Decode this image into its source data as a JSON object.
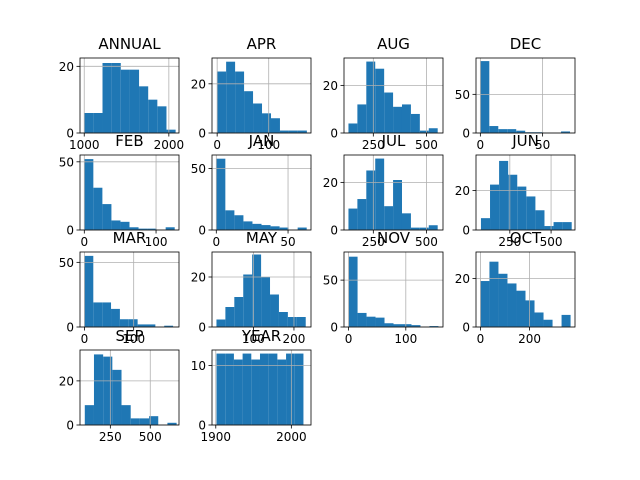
{
  "chart_data": [
    {
      "type": "bar",
      "title": "ANNUAL",
      "xlim": [
        950,
        2120
      ],
      "ylim": [
        0,
        22.5
      ],
      "xticks": [
        {
          "v": 1000,
          "l": "1000"
        },
        {
          "v": 2000,
          "l": "2000"
        }
      ],
      "yticks": [
        {
          "v": 0,
          "l": "0"
        },
        {
          "v": 20,
          "l": "20"
        }
      ],
      "bins": [
        1000,
        1108,
        1216,
        1324,
        1432,
        1540,
        1648,
        1756,
        1864,
        1972,
        2080
      ],
      "counts": [
        6,
        6,
        21,
        21,
        19,
        19,
        14,
        10,
        8,
        1
      ]
    },
    {
      "type": "bar",
      "title": "APR",
      "xlim": [
        -10,
        182
      ],
      "ylim": [
        0,
        30.5
      ],
      "xticks": [
        {
          "v": 0,
          "l": "0"
        },
        {
          "v": 100,
          "l": "100"
        }
      ],
      "yticks": [
        {
          "v": 0,
          "l": "0"
        },
        {
          "v": 20,
          "l": "20"
        }
      ],
      "bins": [
        0,
        17.4,
        34.8,
        52.2,
        69.6,
        87,
        104.4,
        121.8,
        139.2,
        156.6,
        174
      ],
      "counts": [
        25,
        29,
        25,
        17,
        12,
        8,
        6,
        1,
        1,
        1
      ]
    },
    {
      "type": "bar",
      "title": "AUG",
      "xlim": [
        112,
        578
      ],
      "ylim": [
        0,
        31.5
      ],
      "xticks": [
        {
          "v": 250,
          "l": "250"
        },
        {
          "v": 500,
          "l": "500"
        }
      ],
      "yticks": [
        {
          "v": 0,
          "l": "0"
        },
        {
          "v": 20,
          "l": "20"
        }
      ],
      "bins": [
        133,
        175,
        217,
        259,
        301,
        343,
        385,
        427,
        469,
        511,
        553
      ],
      "counts": [
        4,
        12,
        30,
        27,
        17,
        11,
        12,
        8,
        1,
        2
      ]
    },
    {
      "type": "bar",
      "title": "DEC",
      "xlim": [
        -3.5,
        76
      ],
      "ylim": [
        0,
        97
      ],
      "xticks": [
        {
          "v": 0,
          "l": "0"
        },
        {
          "v": 50,
          "l": "50"
        }
      ],
      "yticks": [
        {
          "v": 0,
          "l": "0"
        },
        {
          "v": 50,
          "l": "50"
        }
      ],
      "bins": [
        0,
        7.2,
        14.4,
        21.6,
        28.8,
        36,
        43.2,
        50.4,
        57.6,
        64.8,
        72
      ],
      "counts": [
        93,
        9,
        5,
        5,
        3,
        1,
        1,
        0,
        0,
        2
      ]
    },
    {
      "type": "bar",
      "title": "FEB",
      "xlim": [
        -6,
        132
      ],
      "ylim": [
        0,
        55
      ],
      "xticks": [
        {
          "v": 0,
          "l": "0"
        },
        {
          "v": 100,
          "l": "100"
        }
      ],
      "yticks": [
        {
          "v": 0,
          "l": "0"
        },
        {
          "v": 50,
          "l": "50"
        }
      ],
      "bins": [
        0,
        12.6,
        25.2,
        37.8,
        50.4,
        63,
        75.6,
        88.2,
        100.8,
        113.4,
        126
      ],
      "counts": [
        52,
        31,
        19,
        7,
        6,
        2,
        1,
        1,
        0,
        2
      ]
    },
    {
      "type": "bar",
      "title": "JAN",
      "xlim": [
        -3,
        66
      ],
      "ylim": [
        0,
        61
      ],
      "xticks": [
        {
          "v": 0,
          "l": "0"
        },
        {
          "v": 50,
          "l": "50"
        }
      ],
      "yticks": [
        {
          "v": 0,
          "l": "0"
        },
        {
          "v": 50,
          "l": "50"
        }
      ],
      "bins": [
        0,
        6.3,
        12.6,
        18.9,
        25.2,
        31.5,
        37.8,
        44.1,
        50.4,
        56.7,
        63
      ],
      "counts": [
        58,
        16,
        12,
        7,
        5,
        4,
        3,
        2,
        0,
        2
      ]
    },
    {
      "type": "bar",
      "title": "JUL",
      "xlim": [
        112,
        578
      ],
      "ylim": [
        0,
        31.5
      ],
      "xticks": [
        {
          "v": 250,
          "l": "250"
        },
        {
          "v": 500,
          "l": "500"
        }
      ],
      "yticks": [
        {
          "v": 0,
          "l": "0"
        },
        {
          "v": 20,
          "l": "20"
        }
      ],
      "bins": [
        133,
        175,
        217,
        259,
        301,
        343,
        385,
        427,
        469,
        511,
        553
      ],
      "counts": [
        9,
        13,
        25,
        30,
        10,
        21,
        7,
        1,
        1,
        2
      ]
    },
    {
      "type": "bar",
      "title": "JUN",
      "xlim": [
        45,
        645
      ],
      "ylim": [
        0,
        38
      ],
      "xticks": [
        {
          "v": 250,
          "l": "250"
        },
        {
          "v": 500,
          "l": "500"
        }
      ],
      "yticks": [
        {
          "v": 0,
          "l": "0"
        },
        {
          "v": 20,
          "l": "20"
        }
      ],
      "bins": [
        75,
        130,
        185,
        240,
        295,
        350,
        405,
        460,
        515,
        570,
        625
      ],
      "counts": [
        6,
        23,
        35,
        28,
        22,
        17,
        10,
        2,
        4,
        4
      ]
    },
    {
      "type": "bar",
      "title": "MAR",
      "xlim": [
        -9,
        192
      ],
      "ylim": [
        0,
        58
      ],
      "xticks": [
        {
          "v": 0,
          "l": "0"
        },
        {
          "v": 100,
          "l": "100"
        }
      ],
      "yticks": [
        {
          "v": 0,
          "l": "0"
        },
        {
          "v": 50,
          "l": "50"
        }
      ],
      "bins": [
        0,
        18,
        36,
        54,
        72,
        90,
        108,
        126,
        144,
        162,
        180
      ],
      "counts": [
        55,
        19,
        19,
        14,
        6,
        6,
        2,
        2,
        0,
        1
      ]
    },
    {
      "type": "bar",
      "title": "MAY",
      "xlim": [
        -2,
        242
      ],
      "ylim": [
        0,
        30
      ],
      "xticks": [
        {
          "v": 100,
          "l": "100"
        },
        {
          "v": 200,
          "l": "200"
        }
      ],
      "yticks": [
        {
          "v": 0,
          "l": "0"
        },
        {
          "v": 20,
          "l": "20"
        }
      ],
      "bins": [
        9,
        31,
        53,
        75,
        97,
        119,
        141,
        163,
        185,
        207,
        229
      ],
      "counts": [
        3,
        8,
        12,
        21,
        29,
        20,
        13,
        6,
        4,
        4
      ]
    },
    {
      "type": "bar",
      "title": "NOV",
      "xlim": [
        -8,
        165
      ],
      "ylim": [
        0,
        80
      ],
      "xticks": [
        {
          "v": 0,
          "l": "0"
        },
        {
          "v": 100,
          "l": "100"
        }
      ],
      "yticks": [
        {
          "v": 0,
          "l": "0"
        },
        {
          "v": 50,
          "l": "50"
        }
      ],
      "bins": [
        0,
        15.7,
        31.4,
        47.1,
        62.8,
        78.5,
        94.2,
        109.9,
        125.6,
        141.3,
        157
      ],
      "counts": [
        75,
        15,
        11,
        10,
        4,
        3,
        3,
        2,
        0,
        1
      ]
    },
    {
      "type": "bar",
      "title": "OCT",
      "xlim": [
        -18,
        385
      ],
      "ylim": [
        0,
        31
      ],
      "xticks": [
        {
          "v": 0,
          "l": "0"
        },
        {
          "v": 200,
          "l": "200"
        }
      ],
      "yticks": [
        {
          "v": 0,
          "l": "0"
        },
        {
          "v": 20,
          "l": "20"
        }
      ],
      "bins": [
        0,
        36.7,
        73.4,
        110.1,
        146.8,
        183.5,
        220.2,
        256.9,
        293.6,
        330.3,
        367
      ],
      "counts": [
        19,
        27,
        22,
        18,
        15,
        11,
        6,
        3,
        0,
        5
      ]
    },
    {
      "type": "bar",
      "title": "SEP",
      "xlim": [
        60,
        680
      ],
      "ylim": [
        0,
        34
      ],
      "xticks": [
        {
          "v": 250,
          "l": "250"
        },
        {
          "v": 500,
          "l": "500"
        }
      ],
      "yticks": [
        {
          "v": 0,
          "l": "0"
        },
        {
          "v": 20,
          "l": "20"
        }
      ],
      "bins": [
        90,
        147.5,
        205,
        262.5,
        320,
        377.5,
        435,
        492.5,
        550,
        607.5,
        665
      ],
      "counts": [
        9,
        32,
        31,
        25,
        9,
        3,
        3,
        4,
        0,
        1
      ]
    },
    {
      "type": "bar",
      "title": "YEAR",
      "xlim": [
        1895,
        2026
      ],
      "ylim": [
        0,
        12.6
      ],
      "xticks": [
        {
          "v": 1900,
          "l": "1900"
        },
        {
          "v": 2000,
          "l": "2000"
        }
      ],
      "yticks": [
        {
          "v": 0,
          "l": "0"
        },
        {
          "v": 10,
          "l": "10"
        }
      ],
      "bins": [
        1901,
        1912.5,
        1924,
        1935.5,
        1947,
        1958.5,
        1970,
        1981.5,
        1993,
        2004.5,
        2016
      ],
      "counts": [
        12,
        12,
        11,
        12,
        11,
        12,
        12,
        11,
        12,
        12
      ]
    }
  ],
  "colors": {
    "bar": "#1f77b4",
    "grid": "#b0b0b0",
    "axis": "#000000"
  }
}
